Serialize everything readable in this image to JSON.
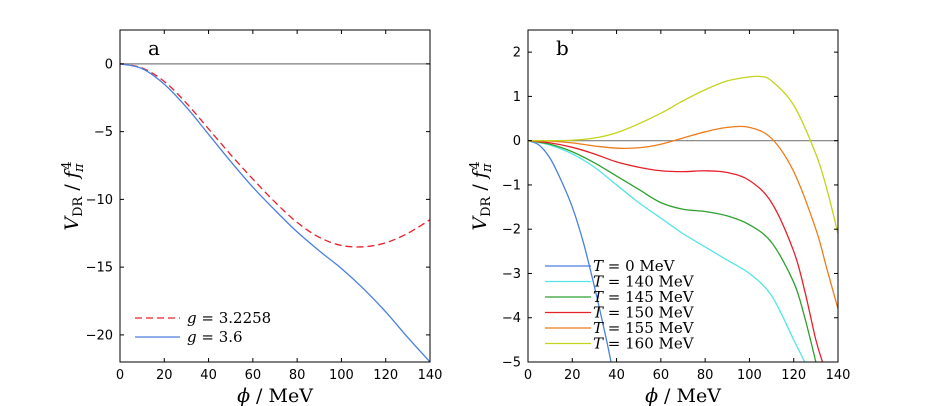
{
  "chart_data": [
    {
      "type": "line",
      "panel_label": "a",
      "xlabel": "ϕ  / MeV",
      "ylabel": "V_DR / f_π^4",
      "xlim": [
        0,
        140
      ],
      "ylim": [
        -22,
        2.5
      ],
      "xticks": [
        0,
        20,
        40,
        60,
        80,
        100,
        120,
        140
      ],
      "yticks": [
        -20,
        -15,
        -10,
        -5,
        0
      ],
      "grid": false,
      "legend": "bottom-left",
      "reference_line": {
        "y": 0,
        "color": "#7f7f7f"
      },
      "x": [
        0,
        10,
        20,
        30,
        40,
        50,
        60,
        70,
        80,
        90,
        100,
        110,
        120,
        130,
        140
      ],
      "series": [
        {
          "name": "g = 3.2258",
          "color": "#e8202a",
          "dash": true,
          "values": [
            0,
            -0.3,
            -1.3,
            -2.9,
            -4.8,
            -6.7,
            -8.5,
            -10.2,
            -11.7,
            -12.8,
            -13.4,
            -13.5,
            -13.2,
            -12.5,
            -11.5
          ]
        },
        {
          "name": "g = 3.6",
          "color": "#4a7fe0",
          "dash": false,
          "values": [
            0,
            -0.35,
            -1.5,
            -3.2,
            -5.2,
            -7.2,
            -9.1,
            -10.8,
            -12.4,
            -13.8,
            -15.1,
            -16.6,
            -18.3,
            -20.2,
            -22.0
          ]
        }
      ]
    },
    {
      "type": "line",
      "panel_label": "b",
      "xlabel": "ϕ  / MeV",
      "ylabel": "V_DR / f_π^4",
      "xlim": [
        0,
        140
      ],
      "ylim": [
        -5,
        2.5
      ],
      "xticks": [
        0,
        20,
        40,
        60,
        80,
        100,
        120,
        140
      ],
      "yticks": [
        -5,
        -4,
        -3,
        -2,
        -1,
        0,
        1,
        2
      ],
      "grid": false,
      "legend": "bottom-left",
      "reference_line": {
        "y": 0,
        "color": "#7f7f7f"
      },
      "series": [
        {
          "name": "T = 0 MeV",
          "color": "#4a7fe0",
          "x": [
            0,
            5,
            10,
            15,
            20,
            25,
            30,
            35,
            37.5
          ],
          "values": [
            0,
            -0.1,
            -0.4,
            -0.9,
            -1.5,
            -2.3,
            -3.3,
            -4.4,
            -5.0
          ]
        },
        {
          "name": "T = 140 MeV",
          "color": "#55e4e4",
          "x": [
            0,
            10,
            20,
            30,
            40,
            50,
            60,
            70,
            80,
            90,
            100,
            110,
            120,
            125
          ],
          "values": [
            0,
            -0.1,
            -0.3,
            -0.6,
            -1.0,
            -1.4,
            -1.75,
            -2.1,
            -2.4,
            -2.7,
            -3.0,
            -3.5,
            -4.5,
            -5.0
          ]
        },
        {
          "name": "T = 145 MeV",
          "color": "#2ea02e",
          "x": [
            0,
            10,
            20,
            30,
            40,
            50,
            60,
            70,
            80,
            90,
            100,
            110,
            120,
            125,
            130
          ],
          "values": [
            0,
            -0.08,
            -0.25,
            -0.5,
            -0.8,
            -1.1,
            -1.4,
            -1.55,
            -1.6,
            -1.7,
            -1.9,
            -2.3,
            -3.2,
            -4.0,
            -5.0
          ]
        },
        {
          "name": "T = 150 MeV",
          "color": "#e8202a",
          "x": [
            0,
            10,
            20,
            30,
            40,
            50,
            60,
            70,
            80,
            90,
            100,
            110,
            120,
            125,
            130,
            133
          ],
          "values": [
            0,
            -0.05,
            -0.15,
            -0.3,
            -0.48,
            -0.6,
            -0.68,
            -0.7,
            -0.68,
            -0.72,
            -0.9,
            -1.4,
            -2.5,
            -3.4,
            -4.5,
            -5.0
          ]
        },
        {
          "name": "T = 155 MeV",
          "color": "#ef7b1a",
          "x": [
            0,
            10,
            20,
            30,
            40,
            50,
            60,
            70,
            80,
            90,
            100,
            110,
            120,
            130,
            135,
            140
          ],
          "values": [
            0,
            -0.01,
            -0.05,
            -0.12,
            -0.17,
            -0.16,
            -0.08,
            0.06,
            0.2,
            0.3,
            0.3,
            0.05,
            -0.7,
            -2.0,
            -2.9,
            -3.8
          ]
        },
        {
          "name": "T = 160 MeV",
          "color": "#c4d41a",
          "x": [
            0,
            10,
            20,
            30,
            40,
            50,
            60,
            70,
            80,
            90,
            100,
            105,
            110,
            120,
            130,
            135,
            140
          ],
          "values": [
            0,
            0.0,
            0.01,
            0.06,
            0.18,
            0.38,
            0.62,
            0.9,
            1.15,
            1.35,
            1.44,
            1.45,
            1.35,
            0.8,
            -0.3,
            -1.1,
            -2.1
          ]
        }
      ]
    }
  ]
}
